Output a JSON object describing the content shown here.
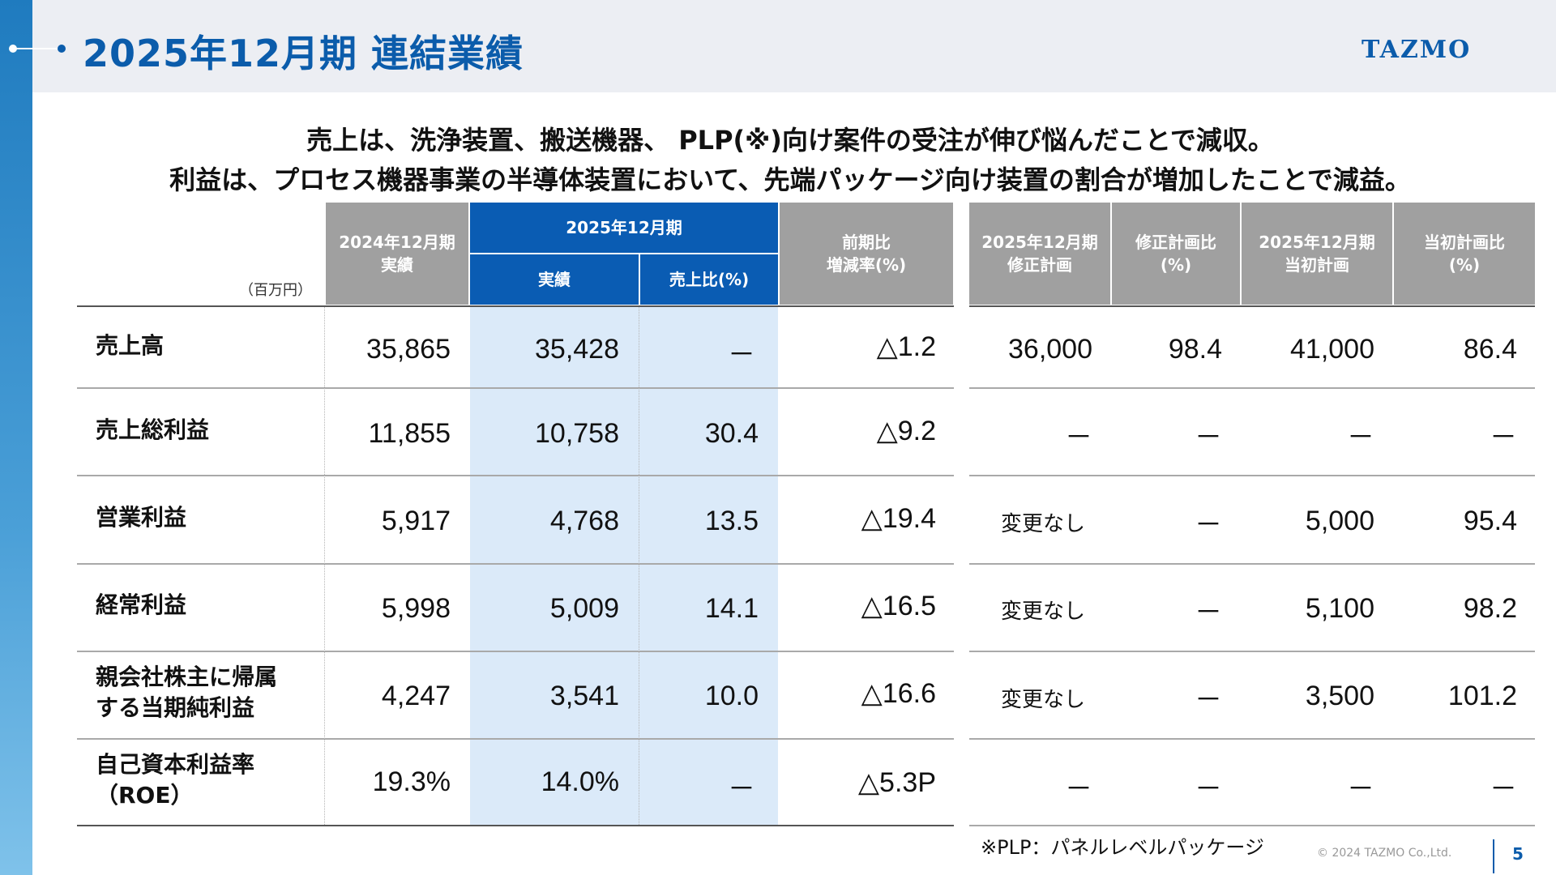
{
  "header": {
    "title": "2025年12月期 連結業績",
    "logo": "TAZMO"
  },
  "summary": {
    "line1": "売上は、洗浄装置、搬送機器、 PLP(※)向け案件の受注が伸び悩んだことで減収。",
    "line2": "利益は、プロセス機器事業の半導体装置において、先端パッケージ向け装置の割合が増加したことで減益。"
  },
  "table": {
    "unit": "（百万円）",
    "headers": {
      "fy2024": [
        "2024年12月期",
        "実績"
      ],
      "fy2025": "2025年12月期",
      "fy2025_actual": "実績",
      "fy2025_ratio": "売上比(%)",
      "yoy": [
        "前期比",
        "増減率(%)"
      ],
      "revised_plan": [
        "2025年12月期",
        "修正計画"
      ],
      "revised_ratio": [
        "修正計画比",
        "(%)"
      ],
      "initial_plan": [
        "2025年12月期",
        "当初計画"
      ],
      "initial_ratio": [
        "当初計画比",
        "(%)"
      ]
    },
    "rows": [
      {
        "label": [
          "売上高"
        ],
        "fy2024": "35,865",
        "fy2025": "35,428",
        "ratio": "－",
        "yoy": "△1.2",
        "revised": "36,000",
        "revised_ratio": "98.4",
        "initial": "41,000",
        "initial_ratio": "86.4"
      },
      {
        "label": [
          "売上総利益"
        ],
        "fy2024": "11,855",
        "fy2025": "10,758",
        "ratio": "30.4",
        "yoy": "△9.2",
        "revised": "－",
        "revised_ratio": "－",
        "initial": "－",
        "initial_ratio": "－"
      },
      {
        "label": [
          "営業利益"
        ],
        "fy2024": "5,917",
        "fy2025": "4,768",
        "ratio": "13.5",
        "yoy": "△19.4",
        "revised": "変更なし",
        "revised_ratio": "－",
        "initial": "5,000",
        "initial_ratio": "95.4"
      },
      {
        "label": [
          "経常利益"
        ],
        "fy2024": "5,998",
        "fy2025": "5,009",
        "ratio": "14.1",
        "yoy": "△16.5",
        "revised": "変更なし",
        "revised_ratio": "－",
        "initial": "5,100",
        "initial_ratio": "98.2"
      },
      {
        "label": [
          "親会社株主に帰属",
          "する当期純利益"
        ],
        "fy2024": "4,247",
        "fy2025": "3,541",
        "ratio": "10.0",
        "yoy": "△16.6",
        "revised": "変更なし",
        "revised_ratio": "－",
        "initial": "3,500",
        "initial_ratio": "101.2"
      },
      {
        "label": [
          "自己資本利益率",
          "（ROE）"
        ],
        "fy2024": "19.3%",
        "fy2025": "14.0%",
        "ratio": "－",
        "yoy": "△5.3P",
        "revised": "－",
        "revised_ratio": "－",
        "initial": "－",
        "initial_ratio": "－"
      }
    ]
  },
  "footer": {
    "footnote": "※PLP：パネルレベルパッケージ",
    "copyright": "© 2024 TAZMO Co.,Ltd.",
    "page_number": "5"
  }
}
